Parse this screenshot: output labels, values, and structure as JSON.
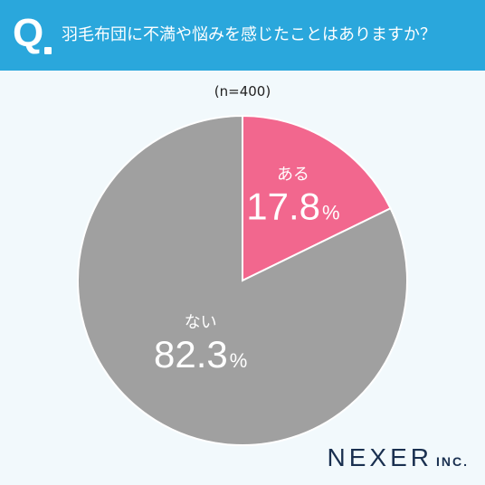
{
  "header": {
    "q_label": "Q",
    "question": "羽毛布団に不満や悩みを感じたことはありますか？",
    "bg_color": "#2aa7dc"
  },
  "sample_label": "(n=400)",
  "brand": {
    "name": "NEXER",
    "suffix": "INC."
  },
  "chart_data": {
    "type": "pie",
    "title": "羽毛布団に不満や悩みを感じたことはありますか？",
    "slices": [
      {
        "label": "ある",
        "value": 17.8,
        "display": "17.8",
        "color": "#f2678e"
      },
      {
        "label": "ない",
        "value": 82.3,
        "display": "82.3",
        "color": "#a0a0a0"
      }
    ],
    "unit": "%",
    "n": 400
  }
}
